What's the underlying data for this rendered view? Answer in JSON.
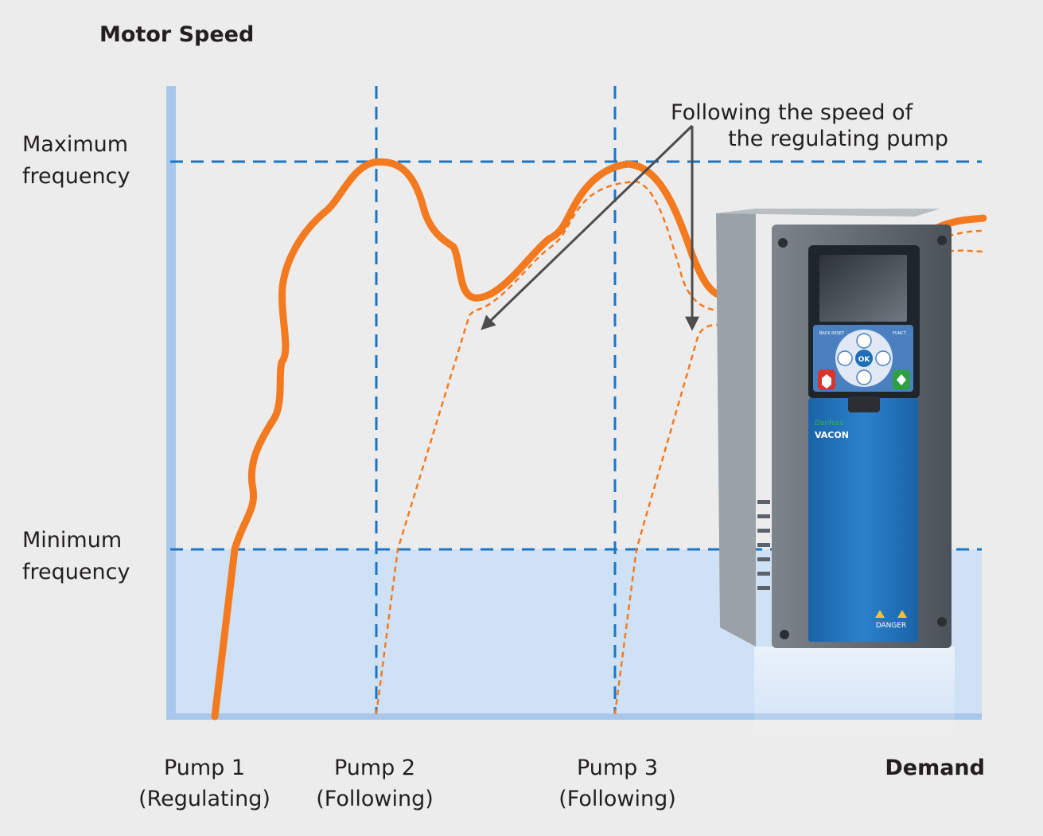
{
  "y_axis_title": "Motor Speed",
  "x_axis_title": "Demand",
  "levels": {
    "max_line1": "Maximum",
    "max_line2": "frequency",
    "min_line1": "Minimum",
    "min_line2": "frequency"
  },
  "pumps": [
    {
      "name": "Pump 1",
      "role": "(Regulating)"
    },
    {
      "name": "Pump 2",
      "role": "(Following)"
    },
    {
      "name": "Pump 3",
      "role": "(Following)"
    }
  ],
  "annotation": {
    "line1": "Following the speed of",
    "line2": "the regulating pump"
  },
  "drive": {
    "brand": "VACON",
    "sub_brand": "Danfoss",
    "ok_label": "OK",
    "danger_label": "DANGER",
    "key_left": "BACK RESET",
    "key_right": "FUNCT"
  },
  "colors": {
    "background": "#ececec",
    "axis": "#a9c7ea",
    "band": "#cfe1f5",
    "guide": "#1b75c4",
    "speed_curve": "#f47a20",
    "arrow": "#4d4d4d",
    "drive_body": "#5b6269",
    "drive_panel": "#1e6fb7"
  }
}
